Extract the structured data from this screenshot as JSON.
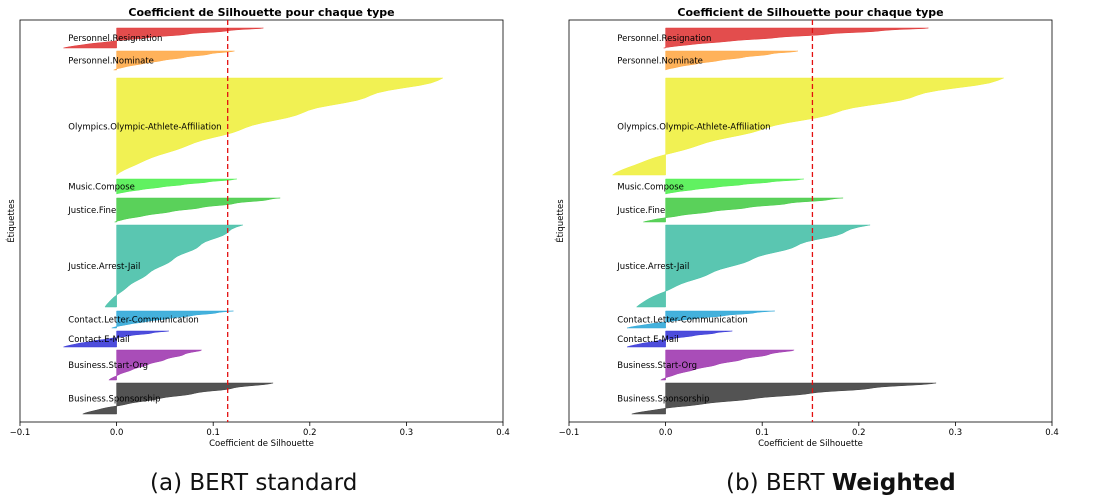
{
  "captions": [
    {
      "prefix": "(a) BERT standard",
      "bold": ""
    },
    {
      "prefix": "(b) BERT ",
      "bold": "Weighted"
    }
  ],
  "chart_data": [
    {
      "type": "silhouette",
      "title": "Coefficient de Silhouette pour chaque type",
      "xlabel": "Coefficient de Silhouette",
      "ylabel": "Étiquettes",
      "xlim": [
        -0.1,
        0.4
      ],
      "xticks": [
        "−0.1",
        "0.0",
        "0.1",
        "0.2",
        "0.3",
        "0.4"
      ],
      "xtick_values": [
        -0.1,
        0.0,
        0.1,
        0.2,
        0.3,
        0.4
      ],
      "average_silhouette": 0.115,
      "clusters": [
        {
          "label": "Business.Sponsorship",
          "color": "#404040",
          "min": -0.035,
          "max": 0.162
        },
        {
          "label": "Business.Start-Org",
          "color": "#a03ab0",
          "min": -0.008,
          "max": 0.088
        },
        {
          "label": "Contact.E-Mail",
          "color": "#3a3ad8",
          "min": -0.055,
          "max": 0.054
        },
        {
          "label": "Contact.Letter-Communication",
          "color": "#30a8d8",
          "min": -0.005,
          "max": 0.121
        },
        {
          "label": "Justice.Arrest-Jail",
          "color": "#48c0a8",
          "min": -0.012,
          "max": 0.131
        },
        {
          "label": "Justice.Fine",
          "color": "#48cc48",
          "min": -0.002,
          "max": 0.172
        },
        {
          "label": "Music.Compose",
          "color": "#50f050",
          "min": 0.0,
          "max": 0.127
        },
        {
          "label": "Olympics.Olympic-Athlete-Affiliation",
          "color": "#f0f040",
          "min": 0.0,
          "max": 0.342
        },
        {
          "label": "Personnel.Nominate",
          "color": "#ffaa48",
          "min": -0.003,
          "max": 0.122
        },
        {
          "label": "Personnel.Resignation",
          "color": "#e03a3a",
          "min": -0.055,
          "max": 0.152
        }
      ]
    },
    {
      "type": "silhouette",
      "title": "Coefficient de Silhouette pour chaque type",
      "xlabel": "Coefficient de Silhouette",
      "ylabel": "Étiquettes",
      "xlim": [
        -0.1,
        0.4
      ],
      "xticks": [
        "−0.1",
        "0.0",
        "0.1",
        "0.2",
        "0.3",
        "0.4"
      ],
      "xtick_values": [
        -0.1,
        0.0,
        0.1,
        0.2,
        0.3,
        0.4
      ],
      "average_silhouette": 0.152,
      "clusters": [
        {
          "label": "Business.Sponsorship",
          "color": "#404040",
          "min": -0.035,
          "max": 0.28
        },
        {
          "label": "Business.Start-Org",
          "color": "#a03ab0",
          "min": -0.005,
          "max": 0.133
        },
        {
          "label": "Contact.E-Mail",
          "color": "#3a3ad8",
          "min": -0.04,
          "max": 0.069
        },
        {
          "label": "Contact.Letter-Communication",
          "color": "#30a8d8",
          "min": -0.04,
          "max": 0.113
        },
        {
          "label": "Justice.Arrest-Jail",
          "color": "#48c0a8",
          "min": -0.03,
          "max": 0.212
        },
        {
          "label": "Justice.Fine",
          "color": "#48cc48",
          "min": -0.023,
          "max": 0.187
        },
        {
          "label": "Music.Compose",
          "color": "#50f050",
          "min": 0.0,
          "max": 0.146
        },
        {
          "label": "Olympics.Olympic-Athlete-Affiliation",
          "color": "#f0f040",
          "min": -0.055,
          "max": 0.355
        },
        {
          "label": "Personnel.Nominate",
          "color": "#ffaa48",
          "min": 0.0,
          "max": 0.137
        },
        {
          "label": "Personnel.Resignation",
          "color": "#e03a3a",
          "min": -0.002,
          "max": 0.272
        }
      ]
    }
  ]
}
